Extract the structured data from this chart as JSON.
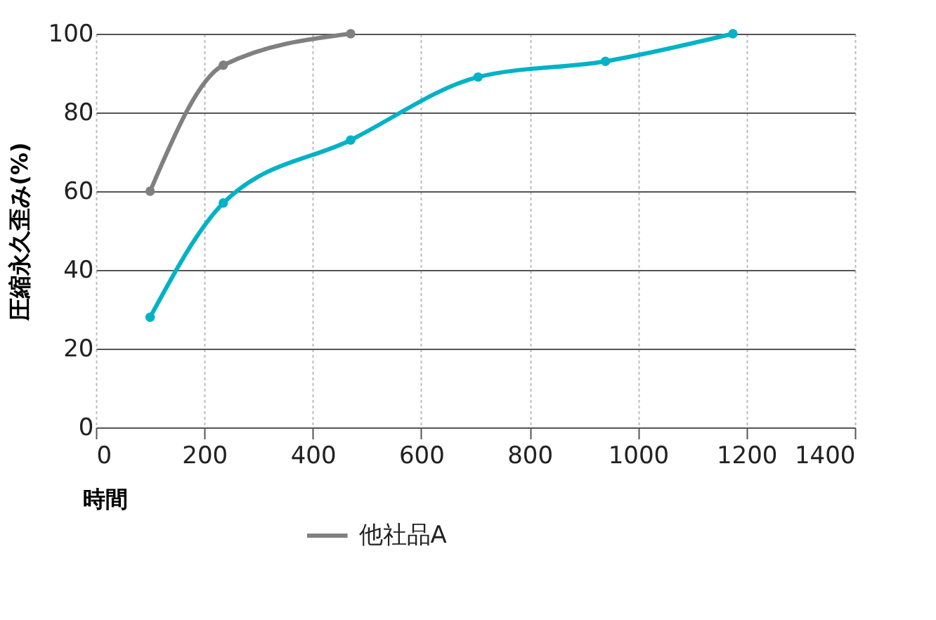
{
  "chart_data": {
    "type": "line",
    "xlabel": "時間",
    "ylabel": "圧縮永久歪み(%)",
    "xlim": [
      0,
      1400
    ],
    "xticks": [
      0,
      200,
      400,
      600,
      800,
      1000,
      1200,
      1400
    ],
    "ylim": [
      0,
      100
    ],
    "yticks": [
      0,
      20,
      40,
      60,
      80,
      100
    ],
    "grid": true,
    "legend": "bottom",
    "marker": "circle",
    "line_style": "solid",
    "series": [
      {
        "color": "#00b2c6",
        "x": [
          100,
          235,
          470,
          705,
          940,
          1175
        ],
        "values": [
          28,
          57,
          73,
          89,
          93,
          100
        ]
      },
      {
        "name": "他社品A",
        "color": "#808083",
        "x": [
          100,
          235,
          470
        ],
        "values": [
          60,
          92,
          100
        ]
      }
    ]
  }
}
